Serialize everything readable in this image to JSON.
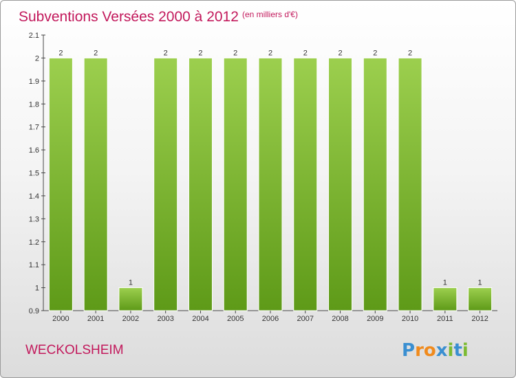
{
  "chart_data": {
    "type": "bar",
    "title": "Subventions Versées 2000 à 2012",
    "subtitle": "(en milliers d'€)",
    "categories": [
      "2000",
      "2001",
      "2002",
      "2003",
      "2004",
      "2005",
      "2006",
      "2007",
      "2008",
      "2009",
      "2010",
      "2011",
      "2012"
    ],
    "values": [
      2,
      2,
      1,
      2,
      2,
      2,
      2,
      2,
      2,
      2,
      2,
      1,
      1
    ],
    "data_labels": [
      "2",
      "2",
      "1",
      "2",
      "2",
      "2",
      "2",
      "2",
      "2",
      "2",
      "2",
      "1",
      "1"
    ],
    "ylim": [
      0.9,
      2.1
    ],
    "yticks": [
      "0.9",
      "1",
      "1.1",
      "1.2",
      "1.3",
      "1.4",
      "1.5",
      "1.6",
      "1.7",
      "1.8",
      "1.9",
      "2",
      "2.1"
    ],
    "xlabel": "",
    "ylabel": "",
    "grid": false,
    "bar_color": "#7cbb32"
  },
  "commune": "WECKOLSHEIM",
  "logo": {
    "text": "Proxiti",
    "letters": [
      "P",
      "r",
      "o",
      "x",
      "i",
      "t",
      "i"
    ],
    "colors": [
      "#3a8fd1",
      "#f08a1c",
      "#f08a1c",
      "#3a8fd1",
      "#7cbb32",
      "#3a8fd1",
      "#7cbb32"
    ]
  }
}
